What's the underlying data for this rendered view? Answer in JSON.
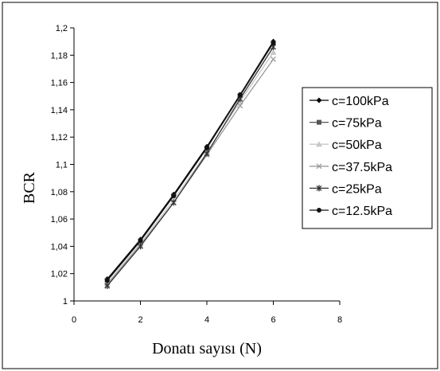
{
  "chart_data": {
    "type": "line",
    "title": "",
    "xlabel": "Donatı sayısı (N)",
    "ylabel": "BCR",
    "xlim": [
      0,
      8
    ],
    "ylim": [
      1,
      1.2
    ],
    "x_ticks": [
      "0",
      "2",
      "4",
      "6",
      "8"
    ],
    "y_ticks": [
      "1",
      "1,02",
      "1,04",
      "1,06",
      "1,08",
      "1,1",
      "1,12",
      "1,14",
      "1,16",
      "1,18",
      "1,2"
    ],
    "grid": false,
    "legend_position": "right",
    "x": [
      1,
      2,
      3,
      4,
      5,
      6
    ],
    "series": [
      {
        "name": "c=100kPa",
        "color": "#000000",
        "marker": "diamond",
        "values": [
          1.016,
          1.045,
          1.078,
          1.113,
          1.151,
          1.19
        ]
      },
      {
        "name": "c=75kPa",
        "color": "#555555",
        "marker": "square",
        "values": [
          1.015,
          1.044,
          1.077,
          1.112,
          1.15,
          1.189
        ]
      },
      {
        "name": "c=50kPa",
        "color": "#c8c8c8",
        "marker": "triangle",
        "values": [
          1.013,
          1.042,
          1.074,
          1.109,
          1.146,
          1.182
        ]
      },
      {
        "name": "c=37.5kPa",
        "color": "#999999",
        "marker": "x",
        "values": [
          1.012,
          1.041,
          1.072,
          1.107,
          1.143,
          1.177
        ]
      },
      {
        "name": "c=25kPa",
        "color": "#333333",
        "marker": "star",
        "values": [
          1.011,
          1.04,
          1.072,
          1.108,
          1.148,
          1.186
        ]
      },
      {
        "name": "c=12.5kPa",
        "color": "#111111",
        "marker": "circle",
        "values": [
          1.015,
          1.044,
          1.077,
          1.112,
          1.151,
          1.189
        ]
      }
    ]
  }
}
